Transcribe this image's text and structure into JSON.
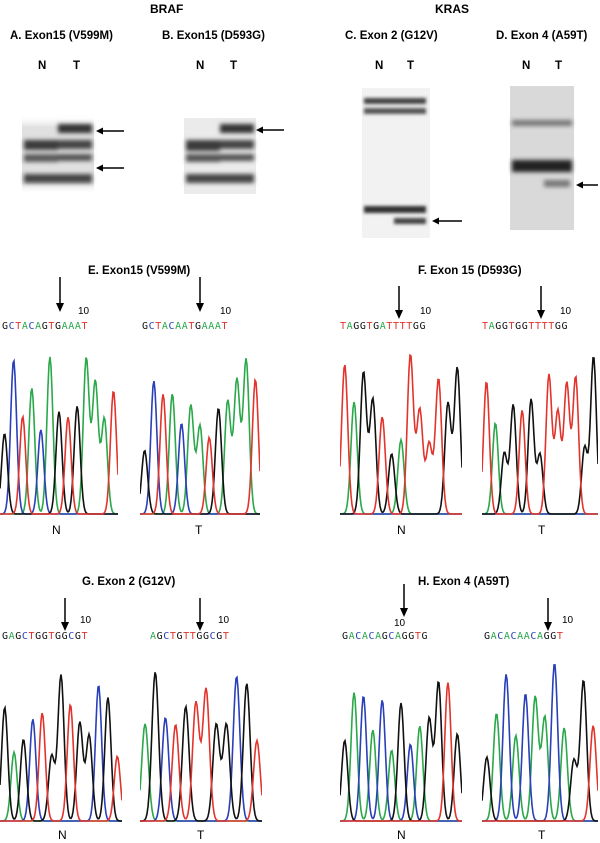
{
  "headers": {
    "braf": "BRAF",
    "kras": "KRAS"
  },
  "gels": [
    {
      "id": "A",
      "title": "A. Exon15 (V599M)",
      "lanes": [
        "N",
        "T"
      ]
    },
    {
      "id": "B",
      "title": "B. Exon15 (D593G)",
      "lanes": [
        "N",
        "T"
      ]
    },
    {
      "id": "C",
      "title": "C. Exon 2 (G12V)",
      "lanes": [
        "N",
        "T"
      ]
    },
    {
      "id": "D",
      "title": "D. Exon 4 (A59T)",
      "lanes": [
        "N",
        "T"
      ]
    }
  ],
  "chromatograms": [
    {
      "id": "E",
      "title": "E. Exon15 (V599M)",
      "traces": [
        {
          "sequence": "GCTACAGTGAAAT",
          "index_label": "10",
          "caption": "N"
        },
        {
          "sequence": "GCTACAATGAAAT",
          "index_label": "10",
          "caption": "T"
        }
      ]
    },
    {
      "id": "F",
      "title": "F. Exon 15 (D593G)",
      "traces": [
        {
          "sequence": "TAGGTGATTTTGG",
          "index_label": "10",
          "caption": "N"
        },
        {
          "sequence": "TAGGTGGTTTTGG",
          "index_label": "10",
          "caption": "T"
        }
      ]
    },
    {
      "id": "G",
      "title": "G. Exon 2 (G12V)",
      "traces": [
        {
          "sequence": "GAGCTGGTGGCGT",
          "index_label": "10",
          "caption": "N"
        },
        {
          "sequence": "AGCTGTTGGCGT",
          "index_label": "10",
          "caption": "T"
        }
      ]
    },
    {
      "id": "H",
      "title": "H. Exon 4 (A59T)",
      "traces": [
        {
          "sequence": "GACACAGCAGGTG",
          "index_label": "10",
          "caption": "N"
        },
        {
          "sequence": "GACACAACAGGT",
          "index_label": "10",
          "caption": "T"
        }
      ]
    }
  ],
  "base_colors": {
    "A": "#2aa84a",
    "C": "#2a3fb8",
    "G": "#111111",
    "T": "#e2342c"
  }
}
